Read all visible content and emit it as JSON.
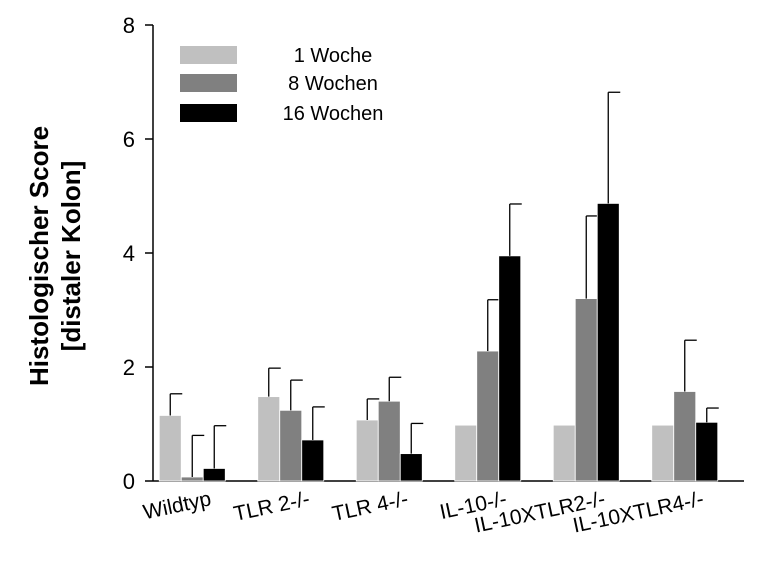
{
  "chart_data": {
    "type": "bar",
    "categories": [
      "Wildtyp",
      "TLR 2-/-",
      "TLR 4-/-",
      "IL-10-/-",
      "IL-10XTLR2-/-",
      "IL-10XTLR4-/-"
    ],
    "series": [
      {
        "name": "1 Woche",
        "color": "#c0c0c0",
        "values": [
          1.15,
          1.48,
          1.07,
          0.98,
          0.98,
          0.98
        ],
        "errors": [
          0.38,
          0.5,
          0.37,
          0.0,
          0.0,
          0.0
        ]
      },
      {
        "name": "8 Wochen",
        "color": "#808080",
        "values": [
          0.07,
          1.24,
          1.4,
          2.28,
          3.2,
          1.57
        ],
        "errors": [
          0.73,
          0.53,
          0.42,
          0.9,
          1.45,
          0.9
        ]
      },
      {
        "name": "16 Wochen",
        "color": "#000000",
        "values": [
          0.22,
          0.72,
          0.48,
          3.95,
          4.87,
          1.03
        ],
        "errors": [
          0.75,
          0.58,
          0.53,
          0.91,
          1.95,
          0.25
        ]
      }
    ],
    "ylabel_line1": "Histologischer Score",
    "ylabel_line2": "[distaler Kolon]",
    "xlabel": "",
    "ylim": [
      0,
      8
    ],
    "yticks": [
      "0",
      "2",
      "4",
      "6",
      "8"
    ],
    "ytick_values": [
      0,
      2,
      4,
      6,
      8
    ],
    "grid": false,
    "legend_position": "top-left"
  }
}
